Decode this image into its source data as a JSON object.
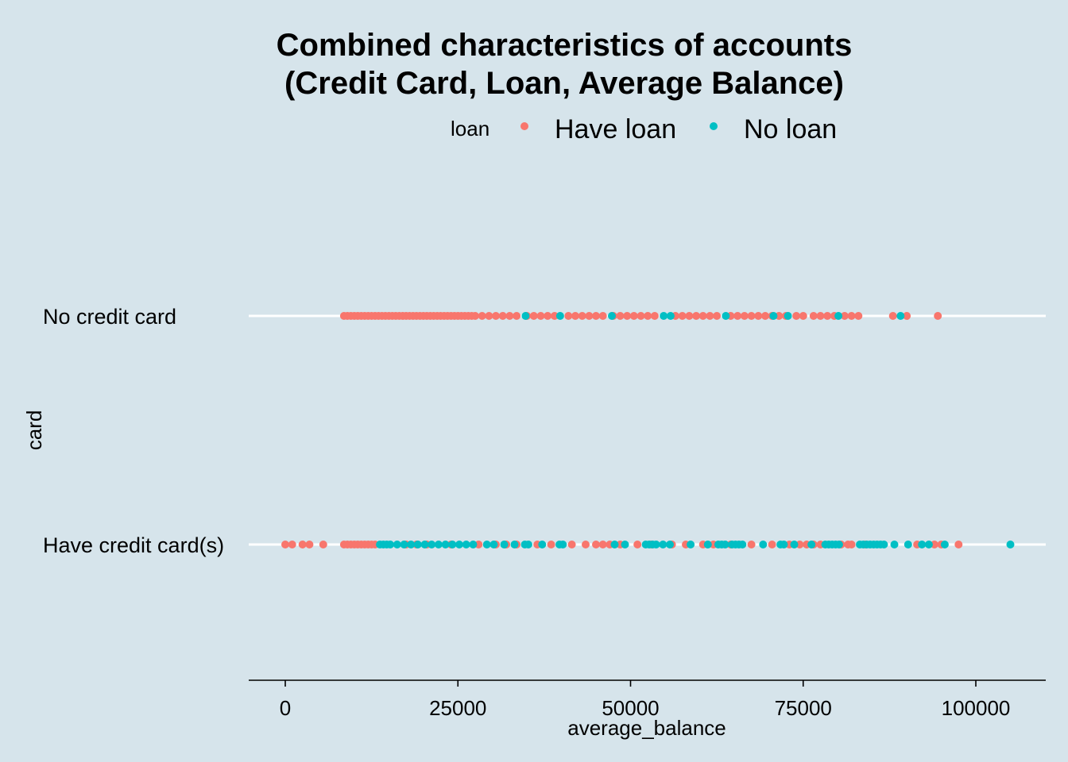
{
  "chart_data": {
    "type": "scatter",
    "title": [
      "Combined characteristics of accounts",
      "(Credit Card, Loan, Average Balance)"
    ],
    "xlabel": "average_balance",
    "ylabel": "card",
    "xlim": [
      -10000,
      110000
    ],
    "x_ticks": [
      0,
      25000,
      50000,
      75000,
      100000
    ],
    "x_tick_labels": [
      "0",
      "25000",
      "50000",
      "75000",
      "100000"
    ],
    "categories": [
      "Have credit card(s)",
      "No credit card"
    ],
    "legend": {
      "title": "loan",
      "position": "top"
    },
    "grid": "horizontal-only",
    "colors": {
      "Have loan": "#f8766d",
      "No loan": "#00bfc4",
      "background": "#d6e4eb",
      "gridline": "#ffffff"
    },
    "series": [
      {
        "name": "Have loan",
        "points": {
          "No credit card": [
            8500,
            9000,
            9500,
            10000,
            10500,
            11000,
            11500,
            12000,
            12500,
            13000,
            13500,
            14000,
            14500,
            15000,
            15500,
            16000,
            16500,
            17000,
            17500,
            18000,
            18500,
            19000,
            19500,
            20000,
            20500,
            21000,
            21500,
            22000,
            22500,
            23000,
            23500,
            24000,
            24500,
            25000,
            25500,
            26000,
            26500,
            27000,
            27500,
            28500,
            29500,
            30500,
            31500,
            32500,
            33500,
            35000,
            36000,
            37000,
            38000,
            39000,
            41000,
            42000,
            43000,
            44000,
            45000,
            46000,
            47500,
            48500,
            49500,
            50500,
            51500,
            52500,
            53500,
            56500,
            57500,
            58500,
            59500,
            60500,
            61500,
            62500,
            64500,
            65500,
            66500,
            67500,
            68500,
            69500,
            70500,
            71500,
            72500,
            74000,
            75000,
            76500,
            77500,
            78500,
            79500,
            81000,
            82000,
            83000,
            88000,
            90000,
            94500
          ],
          "Have credit card(s)": [
            0,
            1000,
            2500,
            3500,
            5500,
            8500,
            9000,
            9500,
            10000,
            10500,
            11000,
            11500,
            12000,
            12500,
            13000,
            17500,
            19000,
            20500,
            24000,
            28000,
            30500,
            32000,
            33500,
            36500,
            38500,
            41500,
            43500,
            45000,
            46000,
            47000,
            48500,
            51000,
            53000,
            56000,
            58000,
            60500,
            62000,
            64500,
            67500,
            70500,
            73000,
            74500,
            75500,
            76500,
            77500,
            80500,
            81500,
            82000,
            84000,
            91500,
            94000,
            95000,
            97500
          ]
        }
      },
      {
        "name": "No loan",
        "points": {
          "No credit card": [
            34800,
            39800,
            47300,
            54800,
            55800,
            63800,
            70700,
            72800,
            80100,
            89100
          ],
          "Have credit card(s)": [
            13700,
            14200,
            14700,
            15200,
            16200,
            17200,
            18200,
            19200,
            20200,
            21200,
            22200,
            23200,
            24200,
            25200,
            26200,
            27200,
            29200,
            30200,
            31700,
            33200,
            34700,
            35200,
            37200,
            39700,
            40200,
            47700,
            49200,
            52200,
            52700,
            53200,
            53700,
            54700,
            55700,
            58700,
            61200,
            62700,
            63200,
            63700,
            64700,
            65200,
            65700,
            66200,
            69200,
            71700,
            72200,
            73700,
            76200,
            78200,
            78700,
            79200,
            79700,
            80200,
            83200,
            83700,
            84200,
            84700,
            85200,
            85700,
            86200,
            86700,
            88200,
            90200,
            92200,
            93200,
            95500,
            105000
          ]
        }
      }
    ]
  }
}
